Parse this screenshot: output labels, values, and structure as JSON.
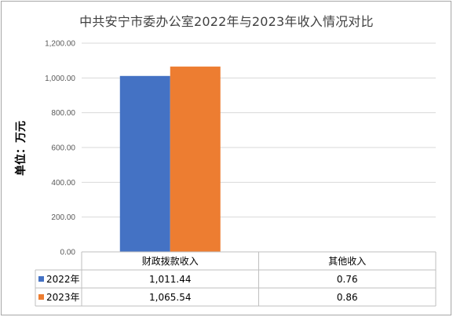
{
  "chart_data": {
    "type": "bar",
    "title": "中共安宁市委办公室2022年与2023年收入情况对比",
    "ylabel": "单位：万元",
    "ylim": [
      0,
      1200
    ],
    "ytick_step": 200,
    "yticks": [
      "0.00",
      "200.00",
      "400.00",
      "600.00",
      "800.00",
      "1,000.00",
      "1,200.00"
    ],
    "categories": [
      "财政拨款收入",
      "其他收入"
    ],
    "series": [
      {
        "name": "2022年",
        "color": "#4472c4",
        "values": [
          1011.44,
          0.76
        ],
        "labels": [
          "1,011.44",
          "0.76"
        ]
      },
      {
        "name": "2023年",
        "color": "#ed7d31",
        "values": [
          1065.54,
          0.86
        ],
        "labels": [
          "1,065.54",
          "0.86"
        ]
      }
    ],
    "grid": true,
    "legend": "data-table"
  }
}
